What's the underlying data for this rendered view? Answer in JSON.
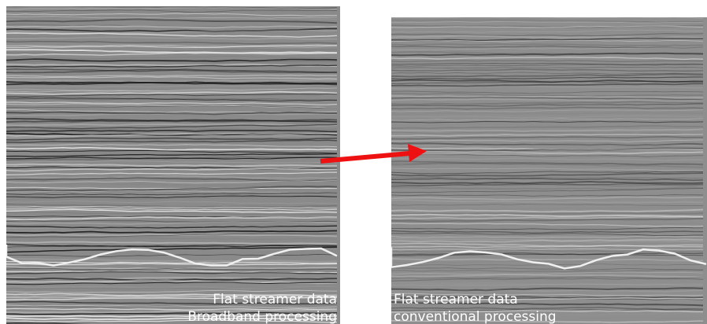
{
  "panels": [
    {
      "caption_lines": [
        "Flat streamer data",
        "Broadband processing"
      ]
    },
    {
      "caption_lines": [
        "Flat streamer data",
        "conventional processing"
      ]
    }
  ]
}
